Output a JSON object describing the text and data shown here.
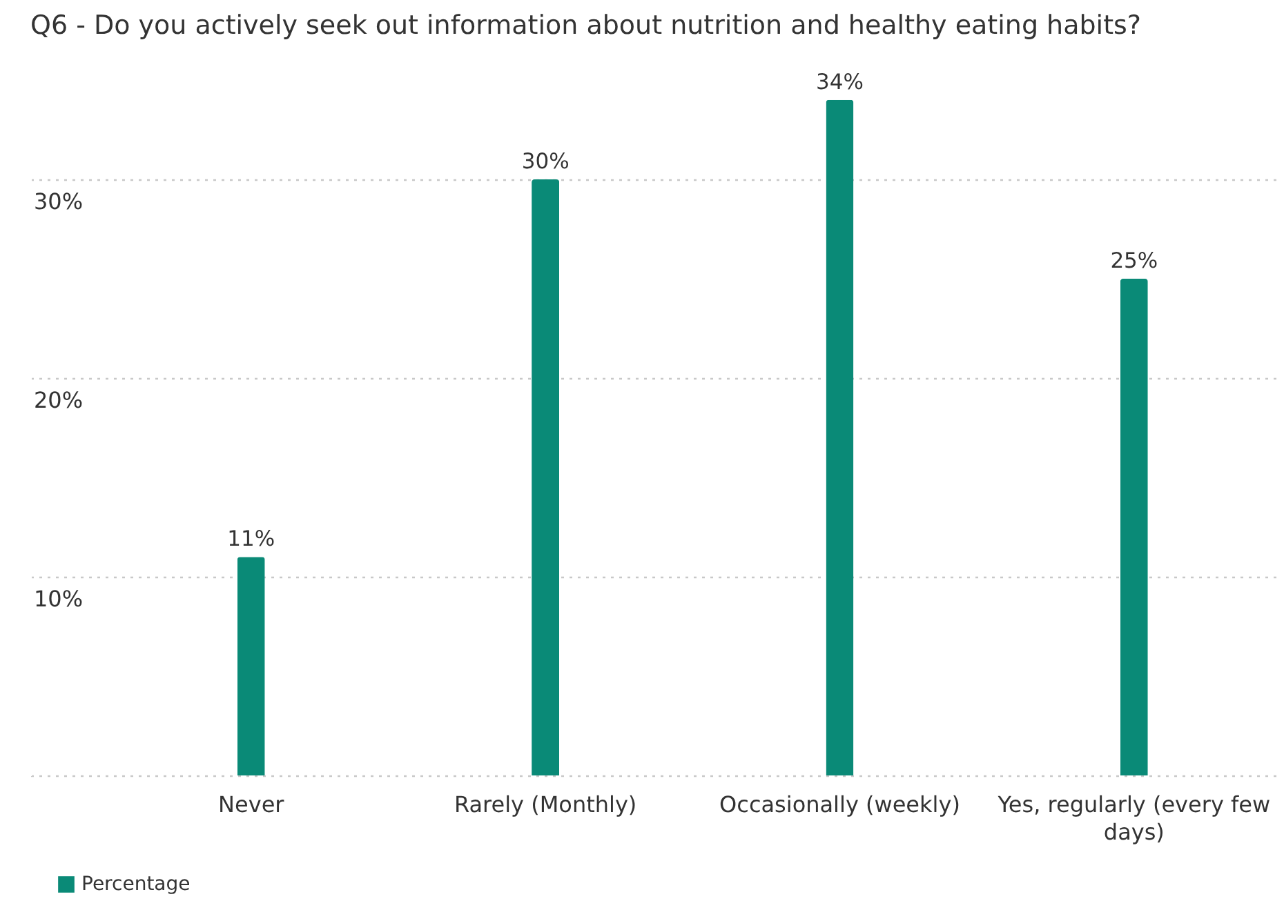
{
  "chart_data": {
    "type": "bar",
    "title": "Q6 - Do you actively seek out information about nutrition and healthy eating habits?",
    "categories": [
      "Never",
      "Rarely (Monthly)",
      "Occasionally (weekly)",
      "Yes, regularly (every few days)"
    ],
    "series": [
      {
        "name": "Percentage",
        "color": "#0a8a77",
        "values": [
          11,
          30,
          34,
          25
        ],
        "value_labels": [
          "11%",
          "30%",
          "34%",
          "25%"
        ]
      }
    ],
    "ylim": [
      0,
      35
    ],
    "yticks": [
      {
        "value": 0,
        "label": null
      },
      {
        "value": 10,
        "label": "10%"
      },
      {
        "value": 20,
        "label": "20%"
      },
      {
        "value": 30,
        "label": "30%"
      }
    ],
    "grid": "y",
    "legend": "bottom left"
  }
}
